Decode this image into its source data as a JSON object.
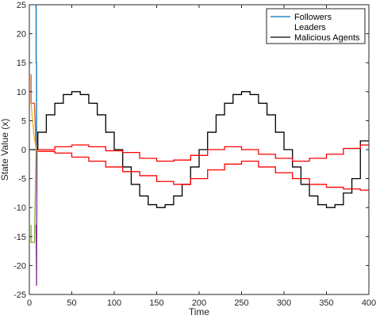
{
  "chart_data": {
    "type": "line",
    "title": "",
    "xlabel": "Time",
    "ylabel": "State Value (x)",
    "xlim": [
      0,
      400
    ],
    "ylim": [
      -25,
      25
    ],
    "x_ticks": [
      0,
      50,
      100,
      150,
      200,
      250,
      300,
      350,
      400
    ],
    "y_ticks": [
      -25,
      -20,
      -15,
      -10,
      -5,
      0,
      5,
      10,
      15,
      20,
      25
    ],
    "grid": false,
    "legend_position": "top-right",
    "legend": [
      {
        "label": "Followers",
        "color": "#0072BD"
      },
      {
        "label": "Leaders",
        "color": "#ffffff"
      },
      {
        "label": "Malicious Agents",
        "color": "#000000"
      }
    ],
    "series": [
      {
        "name": "Malicious Agents",
        "color": "#000000",
        "x": [
          0,
          10,
          10,
          20,
          20,
          30,
          30,
          40,
          40,
          50,
          50,
          60,
          60,
          70,
          70,
          80,
          80,
          90,
          90,
          100,
          100,
          110,
          110,
          120,
          120,
          130,
          130,
          140,
          140,
          150,
          150,
          160,
          160,
          170,
          170,
          180,
          180,
          190,
          190,
          200,
          200,
          210,
          210,
          220,
          220,
          230,
          230,
          240,
          240,
          250,
          250,
          260,
          260,
          270,
          270,
          280,
          280,
          290,
          290,
          300,
          300,
          310,
          310,
          320,
          320,
          330,
          330,
          340,
          340,
          350,
          350,
          360,
          360,
          370,
          370,
          380,
          380,
          390,
          390,
          400
        ],
        "y": [
          0,
          0,
          3,
          3,
          6,
          6,
          8,
          8,
          9.5,
          9.5,
          10,
          10,
          9.5,
          9.5,
          8,
          8,
          6,
          6,
          3,
          3,
          0,
          0,
          -3,
          -3,
          -6,
          -6,
          -8,
          -8,
          -9.5,
          -9.5,
          -10,
          -10,
          -9.5,
          -9.5,
          -8,
          -8,
          -6,
          -6,
          -3,
          -3,
          0,
          0,
          3,
          3,
          6,
          6,
          8,
          8,
          9.5,
          9.5,
          10,
          10,
          9.5,
          9.5,
          8,
          8,
          6,
          6,
          3,
          3,
          0,
          0,
          -3,
          -3,
          -6,
          -6,
          -8,
          -8,
          -9.5,
          -9.5,
          -10,
          -10,
          -9.5,
          -9.5,
          -7.5,
          -7.5,
          -5,
          -5,
          1.5,
          1.5
        ]
      },
      {
        "name": "",
        "color": "#ff0000",
        "x": [
          10,
          30,
          30,
          50,
          50,
          70,
          70,
          90,
          90,
          110,
          110,
          130,
          130,
          150,
          150,
          170,
          170,
          190,
          190,
          210,
          210,
          230,
          230,
          250,
          250,
          270,
          270,
          290,
          290,
          310,
          310,
          330,
          330,
          350,
          350,
          370,
          370,
          390,
          390,
          400
        ],
        "y": [
          0,
          0,
          0.5,
          0.5,
          0.8,
          0.8,
          0.5,
          0.5,
          -0.2,
          -0.2,
          -0.5,
          -0.5,
          -1.5,
          -1.5,
          -2,
          -2,
          -1.8,
          -1.8,
          -1,
          -1,
          0,
          0,
          0.5,
          0.5,
          0,
          0,
          -0.8,
          -0.8,
          -1.5,
          -1.5,
          -2,
          -2,
          -1.5,
          -1.5,
          -0.8,
          -0.8,
          0.2,
          0.2,
          0.8,
          0.8
        ]
      },
      {
        "name": "",
        "color": "#ff0000",
        "x": [
          10,
          30,
          30,
          50,
          50,
          70,
          70,
          90,
          90,
          110,
          110,
          130,
          130,
          150,
          150,
          170,
          170,
          190,
          190,
          210,
          210,
          230,
          230,
          250,
          250,
          270,
          270,
          290,
          290,
          310,
          310,
          330,
          330,
          350,
          350,
          370,
          370,
          390,
          390,
          400
        ],
        "y": [
          -0.3,
          -0.3,
          -0.6,
          -0.6,
          -1.3,
          -1.3,
          -2,
          -2,
          -3,
          -3,
          -3.8,
          -3.8,
          -4.5,
          -4.5,
          -5.5,
          -5.5,
          -6,
          -6,
          -5,
          -5,
          -3.5,
          -3.5,
          -2.5,
          -2.5,
          -2,
          -2,
          -3,
          -3,
          -4,
          -4,
          -5,
          -5,
          -6,
          -6,
          -6.5,
          -6.5,
          -6.8,
          -6.8,
          -7,
          -7
        ]
      },
      {
        "name": "Followers",
        "color": "#0072BD",
        "x": [
          8,
          8,
          8.5,
          8.5,
          9
        ],
        "y": [
          25,
          15,
          15,
          0,
          0
        ]
      },
      {
        "name": "",
        "color": "#7E2F8E",
        "x": [
          8,
          8.5,
          9
        ],
        "y": [
          -13,
          -23.5,
          0
        ]
      },
      {
        "name": "",
        "color": "#D95319",
        "x": [
          2,
          2,
          6,
          8
        ],
        "y": [
          13,
          8,
          8,
          0
        ]
      },
      {
        "name": "",
        "color": "#77AC30",
        "x": [
          2,
          2,
          6,
          8
        ],
        "y": [
          -13,
          -16,
          -16,
          0
        ]
      },
      {
        "name": "",
        "color": "#EDB120",
        "x": [
          2,
          5,
          8
        ],
        "y": [
          8,
          3,
          0
        ]
      }
    ]
  }
}
